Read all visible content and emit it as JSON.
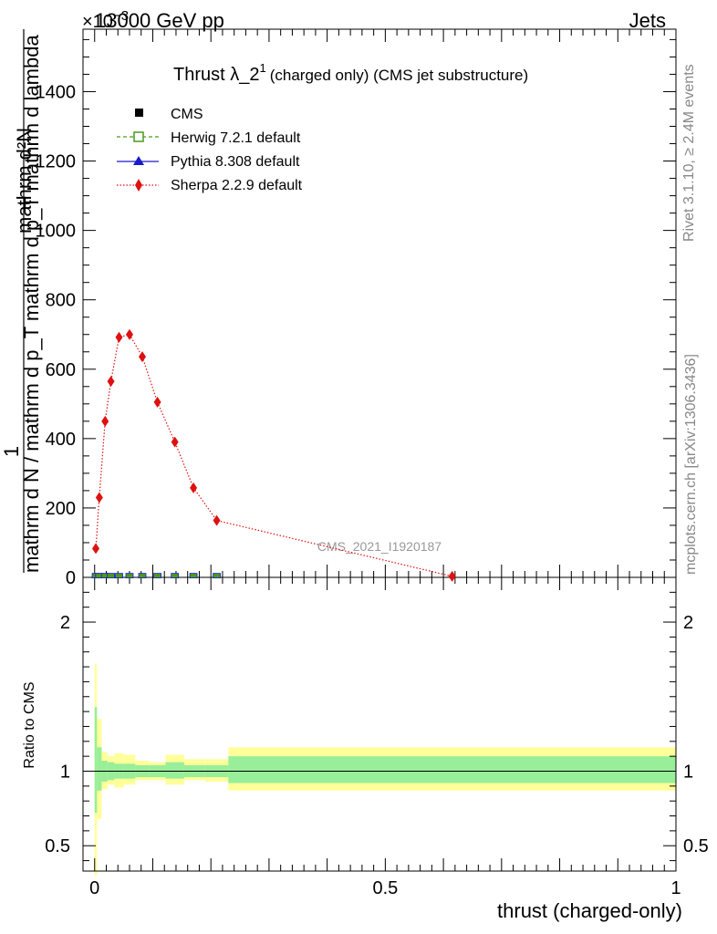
{
  "header": {
    "left": "13000 GeV pp",
    "right": "Jets",
    "exponent": "×10",
    "exponent_power": "−3"
  },
  "side_text": {
    "rivet": "Rivet 3.1.10, ≥ 2.4M events",
    "mcplots": "mcplots.cern.ch [arXiv:1306.3436]"
  },
  "watermark": "CMS_2021_I1920187",
  "chart_data": [
    {
      "type": "line",
      "title": "Thrust λ_2",
      "title_sup": "1",
      "title_suffix": "(charged only) (CMS jet substructure)",
      "ylabel_lines": [
        "1",
        "mathrm d N / mathrm d p_T mathrm d p_T mathrm d lambda",
        "mathrm d²N"
      ],
      "ylim": [
        0,
        1580
      ],
      "y_unit_scale": "×10⁻³",
      "yticks": [
        0,
        200,
        400,
        600,
        800,
        1000,
        1200,
        1400
      ],
      "xlim": [
        -0.02,
        1.0
      ],
      "legend": [
        {
          "name": "CMS",
          "color": "#000000",
          "marker": "square-filled",
          "line": "none"
        },
        {
          "name": "Herwig 7.2.1 default",
          "color": "#4a9a1a",
          "marker": "square-open",
          "line": "dashed"
        },
        {
          "name": "Pythia 8.308 default",
          "color": "#1a1acc",
          "marker": "triangle",
          "line": "solid"
        },
        {
          "name": "Sherpa 2.2.9 default",
          "color": "#dd1111",
          "marker": "diamond",
          "line": "dotted"
        }
      ],
      "series": [
        {
          "name": "Sherpa 2.2.9 default",
          "x": [
            0.002,
            0.008,
            0.018,
            0.028,
            0.042,
            0.06,
            0.082,
            0.108,
            0.138,
            0.17,
            0.21,
            0.615
          ],
          "y": [
            83,
            230,
            450,
            565,
            692,
            700,
            636,
            505,
            390,
            258,
            164,
            3
          ]
        },
        {
          "name": "CMS",
          "x": [
            0.002,
            0.008,
            0.018,
            0.028,
            0.042,
            0.06,
            0.082,
            0.108,
            0.138,
            0.17,
            0.21,
            0.615
          ],
          "y": [
            1,
            1,
            1,
            1,
            1,
            1,
            1,
            1,
            1,
            1,
            1,
            0
          ]
        }
      ]
    },
    {
      "type": "area",
      "ylabel": "Ratio to CMS",
      "xlabel": "thrust (charged-only)",
      "ylim": [
        0.33,
        2.3
      ],
      "yticks": [
        0.5,
        1,
        2
      ],
      "xticks": [
        0,
        0.5,
        1
      ],
      "xlim": [
        -0.02,
        1.0
      ],
      "bins": [
        {
          "x0": 0.0,
          "x1": 0.004,
          "g_lo": 0.72,
          "g_hi": 1.43,
          "y_lo": 0.3,
          "y_hi": 1.72
        },
        {
          "x0": 0.004,
          "x1": 0.012,
          "g_lo": 0.87,
          "g_hi": 1.16,
          "y_lo": 0.68,
          "y_hi": 1.35
        },
        {
          "x0": 0.012,
          "x1": 0.022,
          "g_lo": 0.93,
          "g_hi": 1.07,
          "y_lo": 0.88,
          "y_hi": 1.13
        },
        {
          "x0": 0.022,
          "x1": 0.034,
          "g_lo": 0.94,
          "g_hi": 1.06,
          "y_lo": 0.91,
          "y_hi": 1.1
        },
        {
          "x0": 0.034,
          "x1": 0.05,
          "g_lo": 0.95,
          "g_hi": 1.05,
          "y_lo": 0.89,
          "y_hi": 1.12
        },
        {
          "x0": 0.05,
          "x1": 0.07,
          "g_lo": 0.95,
          "g_hi": 1.05,
          "y_lo": 0.91,
          "y_hi": 1.11
        },
        {
          "x0": 0.07,
          "x1": 0.094,
          "g_lo": 0.96,
          "g_hi": 1.04,
          "y_lo": 0.94,
          "y_hi": 1.07
        },
        {
          "x0": 0.094,
          "x1": 0.122,
          "g_lo": 0.96,
          "g_hi": 1.04,
          "y_lo": 0.94,
          "y_hi": 1.06
        },
        {
          "x0": 0.122,
          "x1": 0.154,
          "g_lo": 0.95,
          "g_hi": 1.06,
          "y_lo": 0.91,
          "y_hi": 1.11
        },
        {
          "x0": 0.154,
          "x1": 0.19,
          "g_lo": 0.96,
          "g_hi": 1.04,
          "y_lo": 0.94,
          "y_hi": 1.08
        },
        {
          "x0": 0.19,
          "x1": 0.23,
          "g_lo": 0.96,
          "g_hi": 1.04,
          "y_lo": 0.93,
          "y_hi": 1.08
        },
        {
          "x0": 0.23,
          "x1": 1.0,
          "g_lo": 0.92,
          "g_hi": 1.1,
          "y_lo": 0.87,
          "y_hi": 1.16
        }
      ],
      "band_colors": {
        "inner": "#99ee99",
        "outer": "#ffff99"
      }
    }
  ]
}
